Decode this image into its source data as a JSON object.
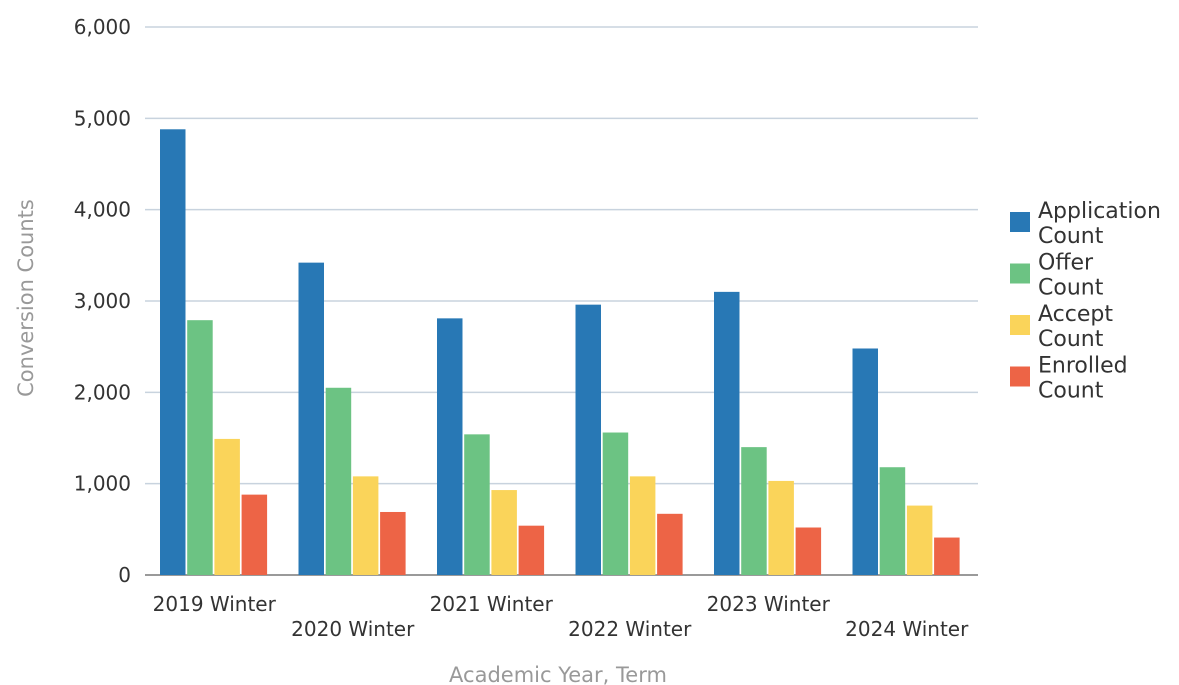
{
  "chart_data": {
    "type": "bar",
    "categories": [
      "2019 Winter",
      "2020 Winter",
      "2021 Winter",
      "2022 Winter",
      "2023 Winter",
      "2024 Winter"
    ],
    "series": [
      {
        "name": "Application Count",
        "name_lines": [
          "Application",
          "Count"
        ],
        "color": "#2878b5",
        "values": [
          4880,
          3420,
          2810,
          2960,
          3100,
          2480
        ]
      },
      {
        "name": "Offer Count",
        "name_lines": [
          "Offer",
          "Count"
        ],
        "color": "#6cc383",
        "values": [
          2790,
          2050,
          1540,
          1560,
          1400,
          1180
        ]
      },
      {
        "name": "Accept Count",
        "name_lines": [
          "Accept",
          "Count"
        ],
        "color": "#fad45a",
        "values": [
          1490,
          1080,
          930,
          1080,
          1030,
          760
        ]
      },
      {
        "name": "Enrolled Count",
        "name_lines": [
          "Enrolled",
          "Count"
        ],
        "color": "#ed6446",
        "values": [
          880,
          690,
          540,
          670,
          520,
          410
        ]
      }
    ],
    "xlabel": "Academic Year, Term",
    "ylabel": "Conversion Counts",
    "ylim": [
      0,
      6000
    ],
    "yticks": [
      0,
      1000,
      2000,
      3000,
      4000,
      5000,
      6000
    ],
    "ytick_labels": [
      "0",
      "1,000",
      "2,000",
      "3,000",
      "4,000",
      "5,000",
      "6,000"
    ],
    "grid": true,
    "legend_position": "right"
  }
}
